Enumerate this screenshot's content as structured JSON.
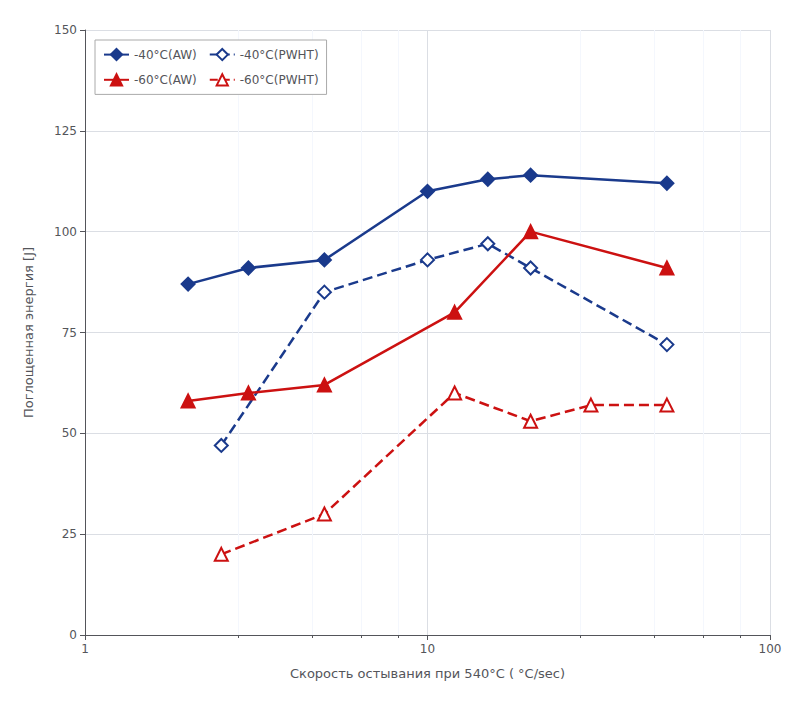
{
  "chart_data": {
    "type": "line",
    "xlabel": "Скорость остывания при 540°C ( °C/sec)",
    "ylabel": "Поглощенная энергия [J]",
    "log": "x",
    "xlim": [
      1,
      100
    ],
    "xticks": [
      1,
      10,
      100
    ],
    "ylim": [
      0,
      150
    ],
    "yticks": [
      0,
      25,
      50,
      75,
      100,
      125,
      150
    ],
    "grid": true,
    "legend": "upper left",
    "series": [
      {
        "name": "-40°C(AW)",
        "color": "#1a3a8c",
        "marker": "diamond",
        "line_style": "solid",
        "x": [
          2.0,
          3.0,
          5.0,
          10.0,
          15.0,
          20.0,
          50.0
        ],
        "values": [
          87,
          91,
          93,
          110,
          113,
          114,
          112
        ]
      },
      {
        "name": "-40°C(PWHT)",
        "color": "#1a3a8c",
        "marker": "diamond_open",
        "line_style": "dashed",
        "x": [
          2.5,
          5.0,
          10.0,
          15.0,
          20.0,
          50.0
        ],
        "values": [
          47,
          85,
          93,
          97,
          91,
          72
        ]
      },
      {
        "name": "-60°C(AW)",
        "color": "#cc1111",
        "marker": "triangle",
        "line_style": "solid",
        "x": [
          2.0,
          3.0,
          5.0,
          12.0,
          20.0,
          50.0
        ],
        "values": [
          58,
          60,
          62,
          80,
          100,
          91
        ]
      },
      {
        "name": "-60°C(PWHT)",
        "color": "#cc1111",
        "marker": "triangle_open",
        "line_style": "dashed",
        "x": [
          2.5,
          5.0,
          12.0,
          20.0,
          30.0,
          50.0
        ],
        "values": [
          20,
          30,
          60,
          53,
          57,
          57
        ]
      }
    ]
  }
}
